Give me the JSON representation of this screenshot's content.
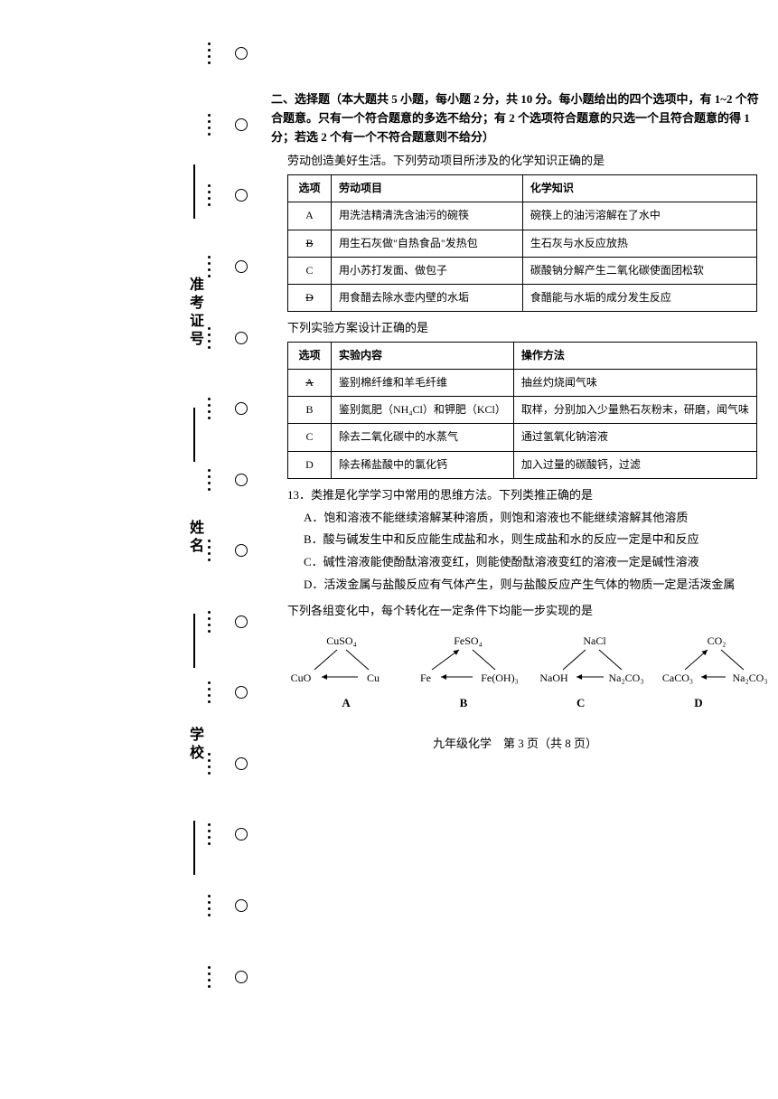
{
  "binding": {
    "labels": [
      "准考证号",
      "姓名",
      "学校"
    ]
  },
  "section": {
    "header": "二、选择题（本大题共 5 小题，每小题 2 分，共 10 分。每小题给出的四个选项中，有 1~2 个符合题意。只有一个符合题意的多选不给分；有 2 个选项符合题意的只选一个且符合题意的得 1 分；若选 2 个有一个不符合题意则不给分）"
  },
  "q11": {
    "stem": "劳动创造美好生活。下列劳动项目所涉及的化学知识正确的是",
    "headers": [
      "选项",
      "劳动项目",
      "化学知识"
    ],
    "rows": [
      {
        "opt": "A",
        "col1": "用洗洁精清洗含油污的碗筷",
        "col2": "碗筷上的油污溶解在了水中"
      },
      {
        "opt": "B",
        "struck": true,
        "col1": "用生石灰做\"自热食品\"发热包",
        "col2": "生石灰与水反应放热"
      },
      {
        "opt": "C",
        "col1": "用小苏打发面、做包子",
        "col2": "碳酸钠分解产生二氧化碳使面团松软"
      },
      {
        "opt": "D",
        "struck": true,
        "col1": "用食醋去除水壶内壁的水垢",
        "col2": "食醋能与水垢的成分发生反应"
      }
    ]
  },
  "q12": {
    "stem": "下列实验方案设计正确的是",
    "headers": [
      "选项",
      "实验内容",
      "操作方法"
    ],
    "rows": [
      {
        "opt": "A",
        "struck": true,
        "col1": "鉴别棉纤维和羊毛纤维",
        "col2": "抽丝灼烧闻气味"
      },
      {
        "opt": "B",
        "col1": "鉴别氮肥（NH₄Cl）和钾肥（KCl）",
        "col2": "取样，分别加入少量熟石灰粉末，研磨，闻气味"
      },
      {
        "opt": "C",
        "col1": "除去二氧化碳中的水蒸气",
        "col2": "通过氢氧化钠溶液"
      },
      {
        "opt": "D",
        "col1": "除去稀盐酸中的氯化钙",
        "col2": "加入过量的碳酸钙，过滤"
      }
    ]
  },
  "q13": {
    "number": "13．",
    "stem": "类推是化学学习中常用的思维方法。下列类推正确的是",
    "opts": [
      "A．饱和溶液不能继续溶解某种溶质，则饱和溶液也不能继续溶解其他溶质",
      "B．酸与碱发生中和反应能生成盐和水，则生成盐和水的反应一定是中和反应",
      "C．碱性溶液能使酚酞溶液变红，则能使酚酞溶液变红的溶液一定是碱性溶液",
      "D．活泼金属与盐酸反应有气体产生，则与盐酸反应产生气体的物质一定是活泼金属"
    ]
  },
  "q14": {
    "stem": "下列各组变化中，每个转化在一定条件下均能一步实现的是",
    "diagrams": {
      "A": {
        "top": "CuSO₄",
        "left": "CuO",
        "right": "Cu"
      },
      "B": {
        "top": "FeSO₄",
        "left": "Fe",
        "right": "Fe(OH)₃"
      },
      "C": {
        "top": "NaCl",
        "left": "NaOH",
        "right": "Na₂CO₃"
      },
      "D": {
        "top": "CO₂",
        "left": "CaCO₃",
        "right": "Na₂CO₃"
      }
    },
    "labels": [
      "A",
      "B",
      "C",
      "D"
    ]
  },
  "footer": "九年级化学　第 3 页（共 8 页）",
  "colors": {
    "text": "#000000",
    "background": "#ffffff"
  }
}
